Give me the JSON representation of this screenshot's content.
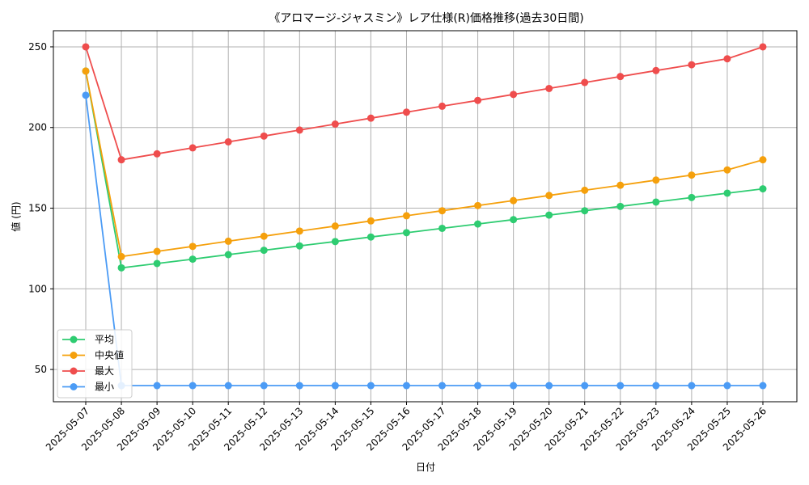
{
  "chart_data": {
    "type": "line",
    "title": "《アロマージ-ジャスミン》レア仕様(R)価格推移(過去30日間)",
    "xlabel": "日付",
    "ylabel": "値 (円)",
    "ylim": [
      30,
      260
    ],
    "yticks": [
      50,
      100,
      150,
      200,
      250
    ],
    "grid": true,
    "legend_position": "lower-left",
    "categories": [
      "2025-05-07",
      "2025-05-08",
      "2025-05-09",
      "2025-05-10",
      "2025-05-11",
      "2025-05-12",
      "2025-05-13",
      "2025-05-14",
      "2025-05-15",
      "2025-05-16",
      "2025-05-17",
      "2025-05-18",
      "2025-05-19",
      "2025-05-20",
      "2025-05-21",
      "2025-05-22",
      "2025-05-23",
      "2025-05-24",
      "2025-05-25",
      "2025-05-26"
    ],
    "series": [
      {
        "name": "平均",
        "color": "#2ecc71",
        "values": [
          235,
          113,
          115.7,
          118.4,
          121.2,
          123.9,
          126.6,
          129.3,
          132.1,
          134.8,
          137.5,
          140.2,
          142.9,
          145.7,
          148.4,
          151.1,
          153.8,
          156.6,
          159.3,
          162
        ]
      },
      {
        "name": "中央値",
        "color": "#f5a00c",
        "values": [
          235,
          120,
          123.2,
          126.3,
          129.5,
          132.6,
          135.8,
          138.9,
          142.1,
          145.3,
          148.4,
          151.6,
          154.7,
          157.9,
          161.1,
          164.2,
          167.4,
          170.5,
          173.7,
          180
        ]
      },
      {
        "name": "最大",
        "color": "#ef4d4d",
        "values": [
          250,
          180,
          183.7,
          187.4,
          191.1,
          194.7,
          198.4,
          202.1,
          205.8,
          209.5,
          213.2,
          216.8,
          220.5,
          224.2,
          227.9,
          231.6,
          235.3,
          238.9,
          242.6,
          250
        ]
      },
      {
        "name": "最小",
        "color": "#4b9bf5",
        "values": [
          220,
          40,
          40,
          40,
          40,
          40,
          40,
          40,
          40,
          40,
          40,
          40,
          40,
          40,
          40,
          40,
          40,
          40,
          40,
          40
        ]
      }
    ]
  }
}
